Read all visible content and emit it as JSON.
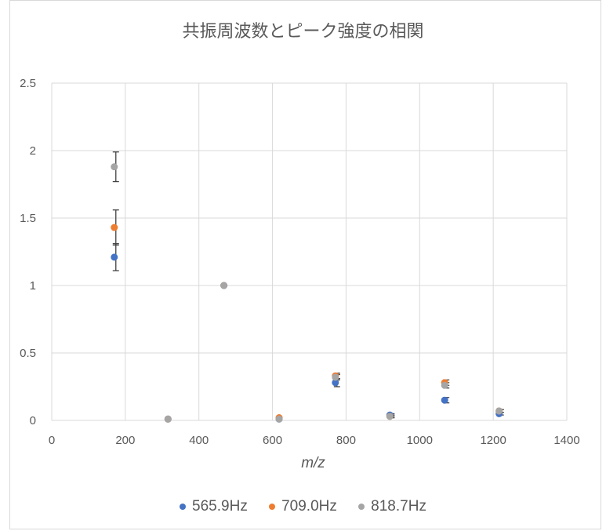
{
  "chart_data": {
    "type": "scatter",
    "title": "共振周波数とピーク強度の相関",
    "xlabel": "m/z",
    "ylabel": "",
    "xlim": [
      0,
      1400
    ],
    "ylim": [
      0,
      2.5
    ],
    "xticks": [
      0,
      200,
      400,
      600,
      800,
      1000,
      1200,
      1400
    ],
    "yticks": [
      0,
      0.5,
      1,
      1.5,
      2,
      2.5
    ],
    "ytick_labels": [
      "0",
      "0.5",
      "1",
      "1.5",
      "2",
      "2.5"
    ],
    "grid": true,
    "legend_position": "bottom",
    "series": [
      {
        "name": "565.9Hz",
        "color": "#4472C4",
        "x": [
          170,
          316,
          468,
          618,
          771,
          919,
          1068,
          1216
        ],
        "y": [
          1.21,
          0.01,
          1.0,
          0.01,
          0.28,
          0.04,
          0.15,
          0.05
        ],
        "err": [
          0.1,
          0,
          0,
          0,
          0.03,
          0.01,
          0.02,
          0.01
        ]
      },
      {
        "name": "709.0Hz",
        "color": "#ED7D31",
        "x": [
          170,
          316,
          468,
          618,
          771,
          919,
          1068,
          1216
        ],
        "y": [
          1.43,
          0.01,
          1.0,
          0.02,
          0.33,
          0.03,
          0.28,
          0.07
        ],
        "err": [
          0.13,
          0,
          0,
          0,
          0.02,
          0.01,
          0.02,
          0.01
        ]
      },
      {
        "name": "818.7Hz",
        "color": "#A5A5A5",
        "x": [
          170,
          316,
          468,
          618,
          771,
          919,
          1068,
          1216
        ],
        "y": [
          1.88,
          0.01,
          1.0,
          0.01,
          0.32,
          0.03,
          0.26,
          0.07
        ],
        "err": [
          0.11,
          0,
          0,
          0,
          0.02,
          0.01,
          0.02,
          0.01
        ]
      }
    ]
  }
}
